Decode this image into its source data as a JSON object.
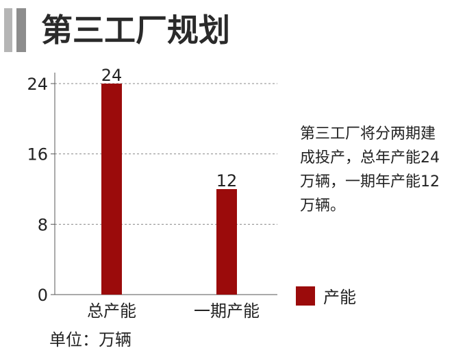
{
  "title": "第三工厂规划",
  "annotation": "第三工厂将分两期建成投产，总年产能24万辆，一期年产能12万辆。",
  "unit_note": "单位：万辆",
  "colors": {
    "bar": "#9b0b0b",
    "grid": "#888888",
    "axis": "#555555",
    "header_light": "#b5b5b5",
    "header_dark": "#8d8d8d"
  },
  "chart_data": {
    "type": "bar",
    "categories": [
      "总产能",
      "一期产能"
    ],
    "series": [
      {
        "name": "产能",
        "values": [
          24,
          12
        ]
      }
    ],
    "title": "第三工厂规划",
    "ylim": [
      0,
      24
    ],
    "yticks": [
      0,
      8,
      16,
      24
    ],
    "grid": true,
    "legend": "right",
    "data_labels": [
      "24",
      "12"
    ]
  }
}
